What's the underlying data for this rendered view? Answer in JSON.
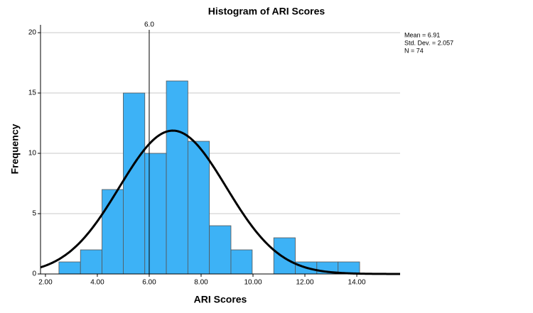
{
  "chart_data": {
    "type": "histogram",
    "title": "Histogram of ARI Scores",
    "x_label": "ARI Scores",
    "y_label": "Frequency",
    "bins": [
      2.52,
      3.35,
      4.18,
      5.0,
      5.83,
      6.66,
      7.49,
      8.32,
      9.15,
      9.97,
      10.8,
      11.63,
      12.46,
      13.28,
      14.11
    ],
    "values": [
      1,
      2,
      7,
      15,
      10,
      16,
      11,
      4,
      2,
      0,
      3,
      1,
      1,
      1
    ],
    "color": "#3db2f6",
    "edge_color": "#555555",
    "xlim": [
      1.81,
      15.67
    ],
    "ylim": [
      0,
      20.65
    ],
    "xticks": [
      {
        "value": 2,
        "label": "2.00"
      },
      {
        "value": 4,
        "label": "4.00"
      },
      {
        "value": 6,
        "label": "6.00"
      },
      {
        "value": 8,
        "label": "8.00"
      },
      {
        "value": 10,
        "label": "10.00"
      },
      {
        "value": 12,
        "label": "12.00"
      },
      {
        "value": 14,
        "label": "14.00"
      }
    ],
    "yticks": [
      0,
      5,
      10,
      15,
      20
    ],
    "grid": true,
    "reference_line": {
      "value": 6.0,
      "label": "6.0"
    },
    "stats": {
      "mean": {
        "value": 6.91,
        "label": "Mean = 6.91"
      },
      "sd": {
        "value": 2.057,
        "label": "Std. Dev. = 2.057"
      },
      "n": {
        "value": 74,
        "label": "N = 74"
      }
    },
    "normal_curve": true
  }
}
